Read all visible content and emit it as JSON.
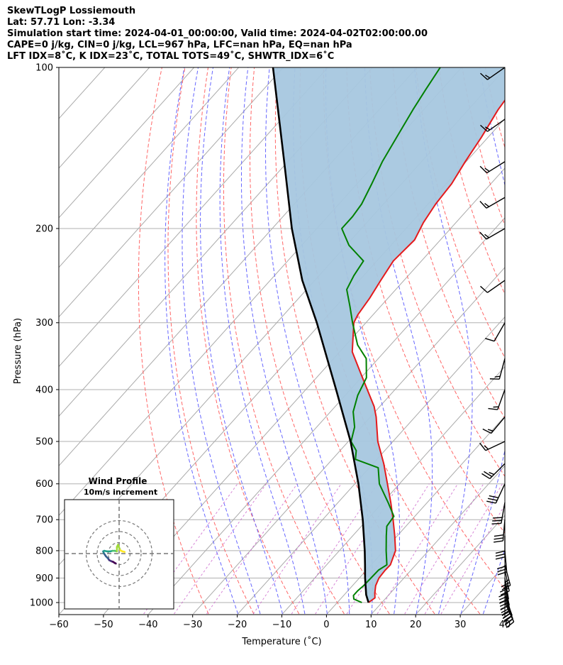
{
  "header": {
    "line1": "SkewTLogP Lossiemouth",
    "line2": "Lat: 57.71   Lon: -3.34",
    "line3": "Simulation start time: 2024-04-01_00:00:00, Valid time: 2024-04-02T02:00:00.00",
    "line4": "CAPE=0 j/kg, CIN=0 j/kg, LCL=967 hPa, LFC=nan hPa, EQ=nan hPa",
    "line5": "LFT IDX=8˚C, K IDX=23˚C, TOTAL TOTS=49˚C, SHWTR_IDX=6˚C"
  },
  "colors": {
    "temperature": "#e41a1c",
    "dewpoint": "#008000",
    "parcel": "#000000",
    "cape_fill": "#a6c7df",
    "dry_adiabat": "#ff6666",
    "moist_adiabat": "#6666ff",
    "mixing_ratio": "#cc66cc",
    "isotherm": "#aaaaaa"
  },
  "chart_data": {
    "type": "line",
    "title": "SkewTLogP Lossiemouth",
    "xlabel": "Temperature (˚C)",
    "ylabel": "Pressure (hPa)",
    "xlim": [
      -60,
      40
    ],
    "ylim_hpa": [
      1050,
      100
    ],
    "x_ticks": [
      -60,
      -50,
      -40,
      -30,
      -20,
      -10,
      0,
      10,
      20,
      30,
      40
    ],
    "x_tick_labels": [
      "−60",
      "−50",
      "−40",
      "−30",
      "−20",
      "−10",
      "0",
      "10",
      "20",
      "30",
      "40"
    ],
    "y_ticks": [
      100,
      200,
      300,
      400,
      500,
      600,
      700,
      800,
      900,
      1000
    ],
    "y_tick_labels": [
      "100",
      "200",
      "300",
      "400",
      "500",
      "600",
      "700",
      "800",
      "900",
      "1000"
    ],
    "grid": true,
    "series": [
      {
        "name": "Temperature",
        "pressure": [
          1000,
          980,
          960,
          930,
          900,
          870,
          850,
          800,
          750,
          700,
          650,
          600,
          550,
          500,
          450,
          430,
          400,
          370,
          340,
          300,
          290,
          270,
          250,
          230,
          210,
          195,
          180,
          165,
          150,
          135,
          120,
          110,
          100
        ],
        "values": [
          7.0,
          7.5,
          6.5,
          5.2,
          4.4,
          4.2,
          4.3,
          2.6,
          -0.6,
          -4.2,
          -8.2,
          -12.7,
          -17.6,
          -23.4,
          -28.7,
          -31.3,
          -36.2,
          -41.5,
          -47.2,
          -52.7,
          -53.4,
          -54.1,
          -55.2,
          -56.3,
          -55.8,
          -57.3,
          -58.3,
          -58.8,
          -60.2,
          -61.5,
          -63.3,
          -64.1,
          -65.2
        ]
      },
      {
        "name": "Dewpoint",
        "pressure": [
          1000,
          985,
          970,
          950,
          930,
          900,
          870,
          850,
          800,
          750,
          720,
          690,
          650,
          600,
          560,
          540,
          520,
          500,
          470,
          440,
          410,
          380,
          350,
          330,
          300,
          280,
          260,
          245,
          230,
          215,
          200,
          190,
          180,
          165,
          150,
          135,
          120,
          110,
          100
        ],
        "values": [
          5.5,
          3.0,
          2.2,
          2.2,
          2.5,
          2.6,
          2.7,
          3.5,
          0.5,
          -2.5,
          -4.3,
          -4.7,
          -8.8,
          -14.5,
          -18.0,
          -24.8,
          -26.4,
          -29.4,
          -31.5,
          -34.9,
          -37.2,
          -38.8,
          -42.7,
          -47.4,
          -53.0,
          -56.8,
          -61.0,
          -62.2,
          -63.0,
          -69.4,
          -74.4,
          -74.4,
          -74.9,
          -76.7,
          -78.8,
          -80.5,
          -82.4,
          -83.6,
          -84.8
        ]
      },
      {
        "name": "Parcel profile",
        "pressure": [
          1000,
          967,
          900,
          850,
          800,
          700,
          600,
          500,
          400,
          300,
          250,
          200,
          150,
          100
        ],
        "values": [
          7.0,
          4.9,
          1.3,
          -1.4,
          -4.3,
          -11.0,
          -19.2,
          -29.5,
          -43.2,
          -61.0,
          -72.8,
          -85.6,
          -100.8,
          -122.3
        ]
      }
    ],
    "wind_barbs": {
      "pressure": [
        1000,
        985,
        970,
        950,
        925,
        900,
        870,
        850,
        800,
        750,
        700,
        650,
        600,
        550,
        500,
        450,
        400,
        350,
        300,
        250,
        200,
        175,
        150,
        125,
        100
      ],
      "direction_deg": [
        155,
        158,
        160,
        165,
        168,
        170,
        168,
        165,
        175,
        180,
        185,
        190,
        205,
        225,
        245,
        220,
        200,
        195,
        210,
        235,
        240,
        240,
        238,
        235,
        235
      ],
      "speed_kt": [
        30,
        30,
        30,
        30,
        30,
        30,
        25,
        25,
        30,
        30,
        30,
        30,
        30,
        25,
        15,
        15,
        15,
        15,
        10,
        10,
        15,
        15,
        15,
        15,
        15
      ]
    },
    "inset": {
      "title_line1": "Wind Profile",
      "title_line2": "10m/s increment",
      "hodograph_u": [
        -3,
        -4,
        -5.5,
        -7,
        -9,
        -10,
        -12,
        -13,
        -14,
        -14.5,
        -13.5,
        -11,
        -8,
        -6,
        -4,
        -2,
        -2,
        -1,
        1,
        3,
        5
      ],
      "hodograph_v": [
        -9,
        -8.5,
        -7.5,
        -7,
        -6,
        -4.5,
        -2.5,
        -1,
        0.5,
        2,
        2.5,
        2,
        2,
        2.5,
        2.5,
        2,
        6,
        8,
        3,
        2,
        1.5
      ]
    }
  }
}
